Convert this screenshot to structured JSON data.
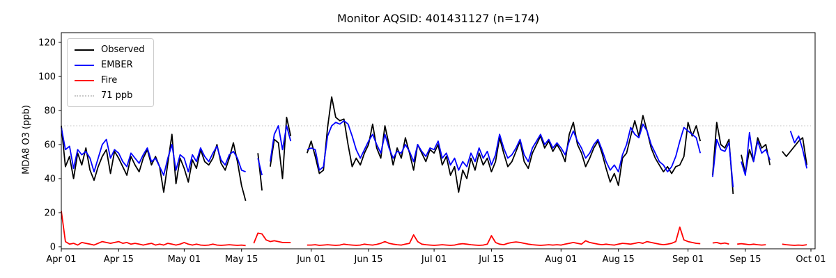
{
  "title": "Monitor AQSID: 401431127 (n=174)",
  "axes": {
    "ylabel": "MDA8 O3 (ppb)",
    "yticks": [
      0,
      20,
      40,
      60,
      80,
      100,
      120
    ],
    "xticks": [
      {
        "label": "Apr 01",
        "day": 0
      },
      {
        "label": "Apr 15",
        "day": 14
      },
      {
        "label": "May 01",
        "day": 30
      },
      {
        "label": "May 15",
        "day": 44
      },
      {
        "label": "Jun 01",
        "day": 61
      },
      {
        "label": "Jun 15",
        "day": 75
      },
      {
        "label": "Jul 01",
        "day": 91
      },
      {
        "label": "Jul 15",
        "day": 105
      },
      {
        "label": "Aug 01",
        "day": 122
      },
      {
        "label": "Aug 15",
        "day": 136
      },
      {
        "label": "Sep 01",
        "day": 153
      },
      {
        "label": "Sep 15",
        "day": 167
      },
      {
        "label": "Oct 01",
        "day": 183
      }
    ]
  },
  "legend": {
    "items": [
      {
        "label": "Observed",
        "color": "#000000",
        "style": "solid"
      },
      {
        "label": "EMBER",
        "color": "#0000ff",
        "style": "solid"
      },
      {
        "label": "Fire",
        "color": "#ff0000",
        "style": "solid"
      },
      {
        "label": "71 ppb",
        "color": "#c9c9c9",
        "style": "dotted"
      }
    ]
  },
  "chart_data": {
    "type": "line",
    "title": "Monitor AQSID: 401431127 (n=174)",
    "xlabel": "",
    "ylabel": "MDA8 O3 (ppb)",
    "x_unit": "daily values, day 0 = Apr 01, axis ends Oct 01 (day 183)",
    "ylim": [
      0,
      126
    ],
    "grid": false,
    "legend_position": "upper left",
    "threshold": {
      "value": 71,
      "label": "71 ppb",
      "color": "#c9c9c9",
      "linestyle": "dotted"
    },
    "series": [
      {
        "name": "Observed",
        "color": "#000000",
        "values": [
          71,
          47,
          53,
          40,
          55,
          48,
          58,
          45,
          39,
          47,
          53,
          57,
          43,
          56,
          52,
          47,
          42,
          53,
          48,
          44,
          52,
          57,
          48,
          53,
          47,
          32,
          49,
          66,
          37,
          52,
          46,
          38,
          51,
          46,
          57,
          50,
          48,
          52,
          60,
          49,
          45,
          52,
          61,
          50,
          36,
          27,
          null,
          null,
          55,
          33,
          null,
          47,
          63,
          61,
          40,
          76,
          65,
          null,
          null,
          null,
          55,
          62,
          53,
          43,
          45,
          70,
          88,
          76,
          74,
          75,
          60,
          47,
          52,
          48,
          55,
          60,
          72,
          58,
          52,
          71,
          60,
          48,
          58,
          52,
          64,
          55,
          45,
          60,
          55,
          50,
          57,
          55,
          60,
          48,
          53,
          42,
          47,
          32,
          45,
          40,
          52,
          45,
          55,
          48,
          52,
          44,
          50,
          64,
          55,
          47,
          50,
          56,
          62,
          50,
          46,
          55,
          60,
          65,
          58,
          62,
          56,
          60,
          56,
          50,
          66,
          73,
          60,
          55,
          47,
          52,
          58,
          62,
          55,
          46,
          38,
          43,
          36,
          52,
          55,
          65,
          74,
          65,
          77,
          68,
          58,
          52,
          48,
          44,
          47,
          43,
          47,
          48,
          53,
          73,
          65,
          71,
          62,
          null,
          null,
          42,
          73,
          60,
          58,
          63,
          31,
          null,
          54,
          43,
          57,
          50,
          64,
          58,
          60,
          48,
          null,
          null,
          56,
          53,
          56,
          59,
          62,
          64,
          48
        ]
      },
      {
        "name": "EMBER",
        "color": "#0000ff",
        "values": [
          70,
          57,
          59,
          46,
          57,
          54,
          56,
          52,
          44,
          52,
          60,
          63,
          52,
          57,
          55,
          50,
          47,
          55,
          52,
          49,
          54,
          58,
          50,
          52,
          47,
          42,
          52,
          60,
          45,
          54,
          52,
          44,
          54,
          50,
          58,
          53,
          50,
          55,
          59,
          51,
          48,
          54,
          56,
          52,
          45,
          44,
          null,
          null,
          52,
          42,
          null,
          50,
          66,
          71,
          57,
          71,
          62,
          null,
          null,
          null,
          57,
          58,
          57,
          45,
          47,
          65,
          71,
          73,
          72,
          74,
          72,
          65,
          57,
          52,
          57,
          62,
          66,
          60,
          55,
          66,
          58,
          52,
          56,
          55,
          60,
          56,
          50,
          60,
          56,
          53,
          58,
          57,
          62,
          52,
          55,
          48,
          52,
          45,
          50,
          47,
          55,
          50,
          58,
          52,
          56,
          48,
          54,
          66,
          58,
          52,
          54,
          58,
          63,
          54,
          50,
          58,
          62,
          66,
          60,
          63,
          58,
          61,
          58,
          54,
          62,
          68,
          62,
          58,
          52,
          55,
          60,
          63,
          57,
          50,
          45,
          48,
          44,
          54,
          60,
          70,
          66,
          64,
          72,
          68,
          60,
          55,
          50,
          48,
          44,
          47,
          53,
          62,
          70,
          68,
          66,
          64,
          55,
          null,
          null,
          41,
          63,
          57,
          56,
          61,
          35,
          null,
          50,
          42,
          67,
          50,
          62,
          55,
          57,
          51,
          null,
          null,
          null,
          null,
          68,
          61,
          65,
          57,
          46
        ]
      },
      {
        "name": "Fire",
        "color": "#ff0000",
        "values": [
          21,
          3,
          1.5,
          2,
          1,
          2.5,
          2,
          1.5,
          1,
          2,
          3,
          2.5,
          2,
          2.5,
          3,
          2,
          2.5,
          1.5,
          2,
          1.5,
          1,
          1.5,
          2,
          1,
          1.5,
          1,
          2,
          1.5,
          1,
          1.5,
          2.5,
          1.5,
          1,
          1.5,
          1,
          0.8,
          1,
          1.5,
          1,
          0.8,
          1,
          1.2,
          1,
          0.8,
          1,
          0.7,
          null,
          2,
          8,
          7.5,
          4,
          3,
          3.5,
          3,
          2.5,
          2.5,
          2.4,
          null,
          null,
          null,
          1,
          1,
          1.2,
          0.8,
          1,
          1.2,
          1,
          0.8,
          1,
          1.5,
          1.2,
          1,
          0.8,
          1,
          1.5,
          1.2,
          1,
          1.4,
          2,
          3,
          2,
          1.5,
          1.2,
          1,
          1.5,
          2,
          7,
          3,
          1.5,
          1.2,
          1,
          0.8,
          1,
          1.2,
          1,
          0.8,
          1,
          1.5,
          1.8,
          1.5,
          1.2,
          1,
          0.8,
          1,
          1.5,
          6.5,
          2.5,
          1.5,
          1.2,
          2,
          2.5,
          2.8,
          2.5,
          2,
          1.5,
          1.2,
          1,
          0.8,
          1,
          1.2,
          1,
          1.2,
          1,
          1.5,
          2,
          2.5,
          2,
          1.5,
          3.5,
          2.5,
          2,
          1.5,
          1.2,
          1.5,
          1.2,
          1,
          1.5,
          2,
          1.8,
          1.5,
          2,
          2.5,
          2,
          3,
          2.5,
          2,
          1.5,
          1.2,
          1.5,
          2,
          3,
          11.5,
          4,
          3,
          2.5,
          2,
          1.8,
          null,
          null,
          2.2,
          2.5,
          1.8,
          2.2,
          1.5,
          null,
          1.5,
          1.8,
          1.5,
          1.2,
          1.5,
          1.2,
          1,
          1.2,
          null,
          null,
          null,
          1.5,
          1.2,
          1,
          0.8,
          1,
          0.8,
          1.2
        ]
      }
    ]
  }
}
